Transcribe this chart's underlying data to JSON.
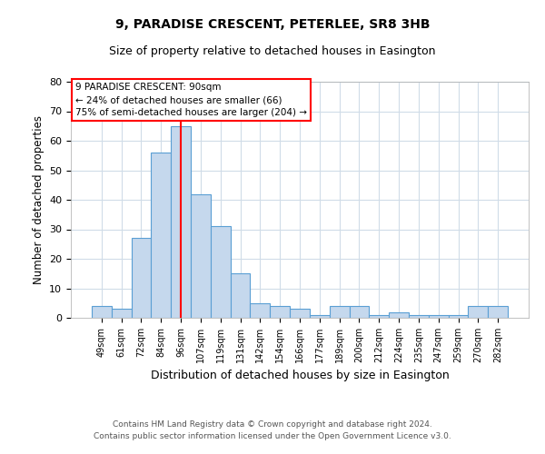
{
  "title1": "9, PARADISE CRESCENT, PETERLEE, SR8 3HB",
  "title2": "Size of property relative to detached houses in Easington",
  "xlabel": "Distribution of detached houses by size in Easington",
  "ylabel": "Number of detached properties",
  "categories": [
    "49sqm",
    "61sqm",
    "72sqm",
    "84sqm",
    "96sqm",
    "107sqm",
    "119sqm",
    "131sqm",
    "142sqm",
    "154sqm",
    "166sqm",
    "177sqm",
    "189sqm",
    "200sqm",
    "212sqm",
    "224sqm",
    "235sqm",
    "247sqm",
    "259sqm",
    "270sqm",
    "282sqm"
  ],
  "values": [
    4,
    3,
    27,
    56,
    65,
    42,
    31,
    15,
    5,
    4,
    3,
    1,
    4,
    4,
    1,
    2,
    1,
    1,
    1,
    4,
    4
  ],
  "bar_color": "#c5d8ed",
  "bar_edge_color": "#5a9fd4",
  "red_line_x": 4.0,
  "annotation_title": "9 PARADISE CRESCENT: 90sqm",
  "annotation_line1": "← 24% of detached houses are smaller (66)",
  "annotation_line2": "75% of semi-detached houses are larger (204) →",
  "footer1": "Contains HM Land Registry data © Crown copyright and database right 2024.",
  "footer2": "Contains public sector information licensed under the Open Government Licence v3.0.",
  "ylim": [
    0,
    80
  ],
  "yticks": [
    0,
    10,
    20,
    30,
    40,
    50,
    60,
    70,
    80
  ],
  "background_color": "#ffffff",
  "grid_color": "#d0dce8"
}
